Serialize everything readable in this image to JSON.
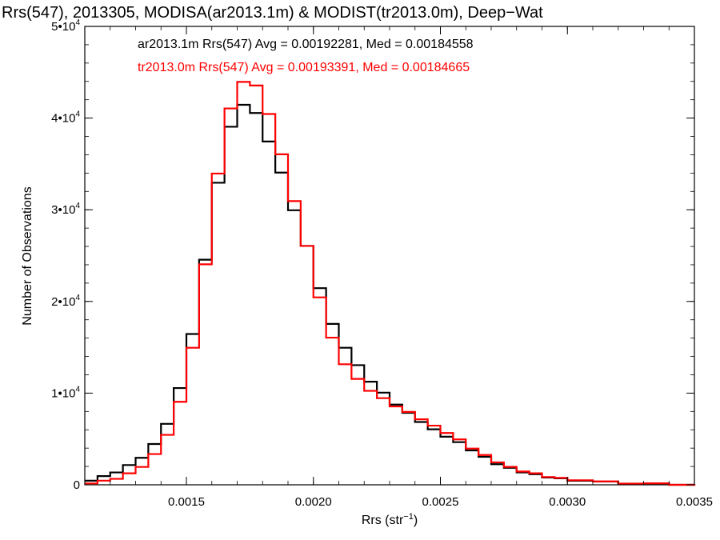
{
  "chart_data": {
    "type": "line",
    "title": "Rrs(547), 2013305, MODISA(ar2013.1m) & MODIST(tr2013.0m), Deep−Wat",
    "xlabel": "Rrs (str⁻¹)",
    "ylabel": "Number of Observations",
    "xlim": [
      0.0011,
      0.0035
    ],
    "ylim": [
      0,
      50000
    ],
    "grid": false,
    "legend_placement": "top-left",
    "x_ticks": [
      {
        "value": 0.0015,
        "label": "0.0015"
      },
      {
        "value": 0.002,
        "label": "0.0020"
      },
      {
        "value": 0.0025,
        "label": "0.0025"
      },
      {
        "value": 0.003,
        "label": "0.0030"
      },
      {
        "value": 0.0035,
        "label": "0.0035"
      }
    ],
    "y_ticks": [
      {
        "value": 0,
        "label": "0"
      },
      {
        "value": 10000,
        "label": "1•104"
      },
      {
        "value": 20000,
        "label": "2•104"
      },
      {
        "value": 30000,
        "label": "3•104"
      },
      {
        "value": 40000,
        "label": "4•104"
      },
      {
        "value": 50000,
        "label": "5•104"
      }
    ],
    "series": [
      {
        "name": "ar2013.1m Rrs(547)",
        "color": "#000000",
        "legend_text": "ar2013.1m Rrs(547) Avg = 0.00192281, Med = 0.00184558",
        "points": [
          [
            0.0011,
            500
          ],
          [
            0.00115,
            900
          ],
          [
            0.0012,
            1400
          ],
          [
            0.00125,
            2100
          ],
          [
            0.0013,
            3000
          ],
          [
            0.00135,
            4400
          ],
          [
            0.0014,
            6700
          ],
          [
            0.00145,
            10500
          ],
          [
            0.0015,
            16500
          ],
          [
            0.00155,
            24500
          ],
          [
            0.0016,
            33000
          ],
          [
            0.00165,
            39000
          ],
          [
            0.0017,
            41500
          ],
          [
            0.00175,
            40500
          ],
          [
            0.0018,
            37500
          ],
          [
            0.00185,
            34000
          ],
          [
            0.0019,
            30000
          ],
          [
            0.00195,
            26000
          ],
          [
            0.002,
            21500
          ],
          [
            0.00205,
            17500
          ],
          [
            0.0021,
            15000
          ],
          [
            0.00215,
            13000
          ],
          [
            0.0022,
            11300
          ],
          [
            0.00225,
            10000
          ],
          [
            0.0023,
            8800
          ],
          [
            0.00235,
            7800
          ],
          [
            0.0024,
            6900
          ],
          [
            0.00245,
            6000
          ],
          [
            0.0025,
            5300
          ],
          [
            0.00255,
            4600
          ],
          [
            0.0026,
            3800
          ],
          [
            0.00265,
            3000
          ],
          [
            0.0027,
            2300
          ],
          [
            0.00275,
            1800
          ],
          [
            0.0028,
            1400
          ],
          [
            0.00285,
            1100
          ],
          [
            0.0029,
            850
          ],
          [
            0.00295,
            650
          ],
          [
            0.003,
            500
          ],
          [
            0.0031,
            300
          ],
          [
            0.0032,
            180
          ],
          [
            0.0033,
            100
          ],
          [
            0.0034,
            50
          ],
          [
            0.0035,
            30
          ]
        ]
      },
      {
        "name": "tr2013.0m Rrs(547)",
        "color": "#ff0000",
        "legend_text": "tr2013.0m Rrs(547) Avg = 0.00193391, Med = 0.00184665",
        "points": [
          [
            0.0011,
            200
          ],
          [
            0.00115,
            400
          ],
          [
            0.0012,
            700
          ],
          [
            0.00125,
            1200
          ],
          [
            0.0013,
            2000
          ],
          [
            0.00135,
            3300
          ],
          [
            0.0014,
            5500
          ],
          [
            0.00145,
            9000
          ],
          [
            0.0015,
            15000
          ],
          [
            0.00155,
            24000
          ],
          [
            0.0016,
            34000
          ],
          [
            0.00165,
            41000
          ],
          [
            0.0017,
            44000
          ],
          [
            0.00175,
            43500
          ],
          [
            0.0018,
            40500
          ],
          [
            0.00185,
            36000
          ],
          [
            0.0019,
            31000
          ],
          [
            0.00195,
            26000
          ],
          [
            0.002,
            20500
          ],
          [
            0.00205,
            16000
          ],
          [
            0.0021,
            13200
          ],
          [
            0.00215,
            11500
          ],
          [
            0.0022,
            10300
          ],
          [
            0.00225,
            9400
          ],
          [
            0.0023,
            8600
          ],
          [
            0.00235,
            7900
          ],
          [
            0.0024,
            7200
          ],
          [
            0.00245,
            6400
          ],
          [
            0.0025,
            5700
          ],
          [
            0.00255,
            4900
          ],
          [
            0.0026,
            4000
          ],
          [
            0.00265,
            3200
          ],
          [
            0.0027,
            2500
          ],
          [
            0.00275,
            1900
          ],
          [
            0.0028,
            1500
          ],
          [
            0.00285,
            1200
          ],
          [
            0.0029,
            900
          ],
          [
            0.00295,
            700
          ],
          [
            0.003,
            550
          ],
          [
            0.0031,
            320
          ],
          [
            0.0032,
            190
          ],
          [
            0.0033,
            110
          ],
          [
            0.0034,
            55
          ],
          [
            0.0035,
            30
          ]
        ]
      }
    ]
  }
}
